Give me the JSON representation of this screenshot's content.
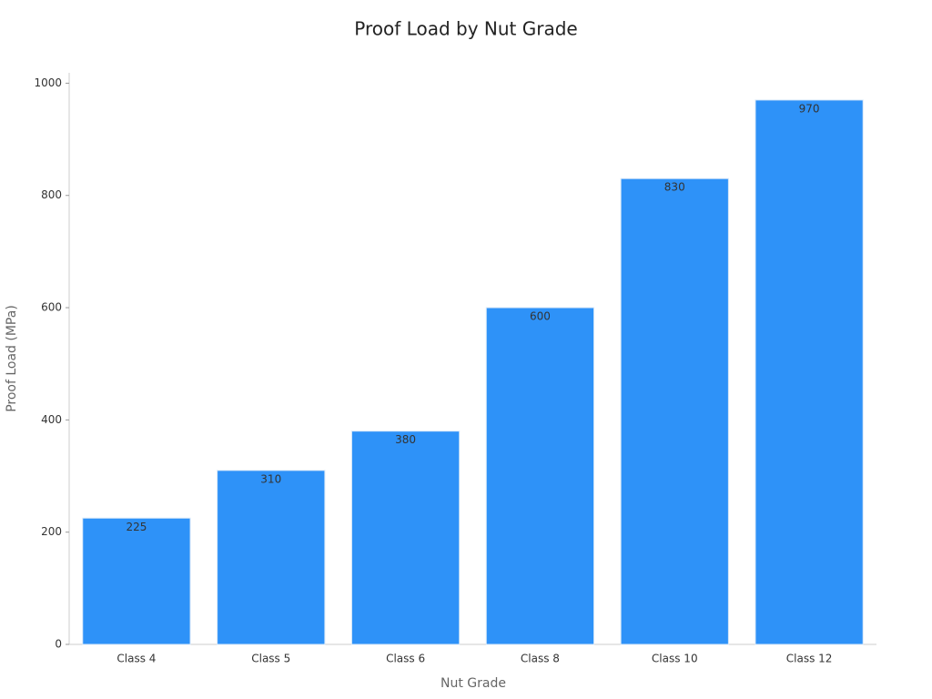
{
  "chart_data": {
    "type": "bar",
    "title": "Proof Load by Nut Grade",
    "x_label": "Nut Grade",
    "y_label": "Proof Load (MPa)",
    "categories": [
      "Class 4",
      "Class 5",
      "Class 6",
      "Class 8",
      "Class 10",
      "Class 12"
    ],
    "values": [
      225,
      310,
      380,
      600,
      830,
      970
    ],
    "color": "#2e92f8",
    "ylim": [
      0,
      1018.5
    ],
    "yticks": [
      0,
      200,
      400,
      600,
      800,
      1000
    ],
    "grid": false
  }
}
